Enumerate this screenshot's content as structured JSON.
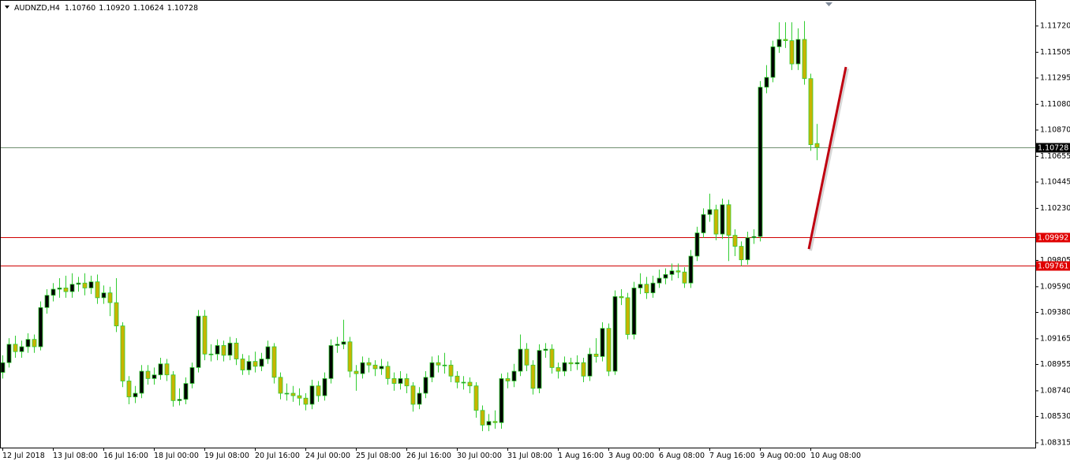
{
  "chart_data": {
    "type": "candlestick",
    "title": "AUDNZD,H4",
    "header_values": [
      "1.10760",
      "1.10920",
      "1.10624",
      "1.10728"
    ],
    "categories": [
      "12 Jul 2018",
      null,
      null,
      null,
      null,
      null,
      null,
      null,
      "13 Jul 08:00",
      null,
      null,
      null,
      null,
      null,
      null,
      null,
      "16 Jul 16:00",
      null,
      null,
      null,
      null,
      null,
      null,
      null,
      "18 Jul 00:00",
      null,
      null,
      null,
      null,
      null,
      null,
      null,
      "19 Jul 08:00",
      null,
      null,
      null,
      null,
      null,
      null,
      null,
      "20 Jul 16:00",
      null,
      null,
      null,
      null,
      null,
      null,
      null,
      "24 Jul 00:00",
      null,
      null,
      null,
      null,
      null,
      null,
      null,
      "25 Jul 08:00",
      null,
      null,
      null,
      null,
      null,
      null,
      null,
      "26 Jul 16:00",
      null,
      null,
      null,
      null,
      null,
      null,
      null,
      "30 Jul 00:00",
      null,
      null,
      null,
      null,
      null,
      null,
      null,
      "31 Jul 08:00",
      null,
      null,
      null,
      null,
      null,
      null,
      null,
      "1 Aug 16:00",
      null,
      null,
      null,
      null,
      null,
      null,
      null,
      "3 Aug 00:00",
      null,
      null,
      null,
      null,
      null,
      null,
      null,
      "6 Aug 08:00",
      null,
      null,
      null,
      null,
      null,
      null,
      null,
      "7 Aug 16:00",
      null,
      null,
      null,
      null,
      null,
      null,
      null,
      "9 Aug 00:00",
      null,
      null,
      null,
      null,
      null,
      null,
      null,
      "10 Aug 08:00",
      null
    ],
    "open": [
      1.0889,
      1.0897,
      1.0912,
      1.0906,
      1.091,
      1.0916,
      1.091,
      1.0942,
      1.0952,
      1.0957,
      1.0958,
      1.0955,
      1.0961,
      1.0962,
      1.0958,
      1.0963,
      1.095,
      1.0954,
      1.0946,
      1.0927,
      1.0882,
      1.0869,
      1.0872,
      1.089,
      1.0884,
      1.0887,
      1.0896,
      1.0887,
      1.0866,
      1.0867,
      1.088,
      1.0893,
      1.0935,
      1.0904,
      1.0904,
      1.0911,
      1.0903,
      1.0913,
      1.09,
      1.0891,
      1.0898,
      1.0894,
      1.09,
      1.091,
      1.0885,
      1.0872,
      1.0872,
      1.087,
      1.0868,
      1.0863,
      1.0878,
      1.087,
      1.0884,
      1.0911,
      1.0912,
      1.0914,
      1.089,
      1.0888,
      1.0897,
      1.0895,
      1.0892,
      1.0894,
      1.0884,
      1.088,
      1.0884,
      1.0878,
      1.0863,
      1.0872,
      1.0885,
      1.0897,
      1.0895,
      1.0895,
      1.0886,
      1.0881,
      1.0881,
      1.0878,
      1.0858,
      1.0846,
      1.0849,
      1.0848,
      1.0884,
      1.0882,
      1.089,
      1.0908,
      1.0895,
      1.0876,
      1.0907,
      1.0908,
      1.0893,
      1.089,
      1.0897,
      1.0896,
      1.0897,
      1.0886,
      1.0904,
      1.0902,
      1.0925,
      1.089,
      1.0951,
      1.095,
      1.092,
      1.0958,
      1.0961,
      1.0954,
      1.0962,
      1.0966,
      1.0969,
      1.0972,
      1.0971,
      1.0962,
      1.0984,
      1.1003,
      1.1018,
      1.1022,
      1.1002,
      1.1026,
      1.1001,
      1.0992,
      1.0981,
      1.0999,
      1.1,
      1.1122,
      1.113,
      1.1155,
      1.1161,
      1.116,
      1.1141,
      1.1161,
      1.1129,
      1.1076
    ],
    "high": [
      1.0903,
      1.0917,
      1.0919,
      1.0915,
      1.0921,
      1.092,
      1.0947,
      1.0957,
      1.0962,
      1.0966,
      1.0968,
      1.097,
      1.0967,
      1.097,
      1.0968,
      1.0969,
      1.096,
      1.0959,
      1.0966,
      1.093,
      1.0886,
      1.0878,
      1.0895,
      1.0895,
      1.0893,
      1.0901,
      1.09,
      1.089,
      1.0876,
      1.0885,
      1.0897,
      1.094,
      1.094,
      1.0912,
      1.0916,
      1.0915,
      1.0918,
      1.0917,
      1.0904,
      1.0903,
      1.0906,
      1.0905,
      1.0915,
      1.0913,
      1.0889,
      1.088,
      1.0878,
      1.0876,
      1.0872,
      1.0883,
      1.0882,
      1.0889,
      1.0916,
      1.0918,
      1.0932,
      1.0918,
      1.0895,
      1.0902,
      1.0901,
      1.0899,
      1.09,
      1.0898,
      1.0889,
      1.089,
      1.0888,
      1.0881,
      1.0877,
      1.089,
      1.0902,
      1.0903,
      1.0905,
      1.0899,
      1.089,
      1.0886,
      1.0885,
      1.0881,
      1.0862,
      1.0855,
      1.0858,
      1.0888,
      1.0889,
      1.0896,
      1.092,
      1.0913,
      1.0899,
      1.0912,
      1.0913,
      1.0912,
      1.0897,
      1.0902,
      1.0901,
      1.0903,
      1.0901,
      1.0909,
      1.0917,
      1.093,
      1.0929,
      1.0956,
      1.0957,
      1.0954,
      1.0963,
      1.097,
      1.0967,
      1.0968,
      1.0973,
      1.0974,
      1.0978,
      1.0978,
      1.0975,
      1.0989,
      1.1008,
      1.1023,
      1.1035,
      1.1026,
      1.1031,
      1.103,
      1.1006,
      1.0996,
      1.1004,
      1.1006,
      1.1127,
      1.114,
      1.116,
      1.1175,
      1.1175,
      1.1175,
      1.117,
      1.1176,
      1.1133,
      1.1092
    ],
    "low": [
      1.0884,
      1.0893,
      1.0901,
      1.0901,
      1.0905,
      1.0905,
      1.0907,
      1.0937,
      1.0947,
      1.095,
      1.095,
      1.095,
      1.0955,
      1.0952,
      1.0953,
      1.0945,
      1.0945,
      1.0935,
      1.0922,
      1.0877,
      1.0863,
      1.0864,
      1.0868,
      1.0879,
      1.0879,
      1.0883,
      1.0882,
      1.0861,
      1.0862,
      1.0863,
      1.0876,
      1.0889,
      1.0899,
      1.0898,
      1.0899,
      1.0898,
      1.0899,
      1.0895,
      1.0887,
      1.0887,
      1.0889,
      1.089,
      1.0896,
      1.088,
      1.0867,
      1.0866,
      1.0865,
      1.0862,
      1.0858,
      1.0859,
      1.0865,
      1.0866,
      1.088,
      1.0905,
      1.0908,
      1.0885,
      1.0874,
      1.0884,
      1.0889,
      1.0886,
      1.0887,
      1.0879,
      1.0874,
      1.0875,
      1.0872,
      1.0857,
      1.0859,
      1.0868,
      1.0881,
      1.0889,
      1.0888,
      1.0881,
      1.0876,
      1.0875,
      1.0872,
      1.0852,
      1.0841,
      1.0841,
      1.0843,
      1.0843,
      1.0876,
      1.0877,
      1.0886,
      1.089,
      1.0871,
      1.0872,
      1.0901,
      1.0888,
      1.0884,
      1.0886,
      1.089,
      1.0891,
      1.0881,
      1.0882,
      1.0897,
      1.0898,
      1.0886,
      1.0887,
      1.0944,
      1.0916,
      1.0916,
      1.0953,
      1.0949,
      1.095,
      1.0958,
      1.0961,
      1.0964,
      1.0966,
      1.0958,
      1.0958,
      1.098,
      1.0999,
      1.1012,
      1.0997,
      1.0998,
      1.098,
      1.0984,
      1.0976,
      1.0977,
      1.0994,
      1.0996,
      1.1117,
      1.1126,
      1.115,
      1.1154,
      1.1136,
      1.1136,
      1.1124,
      1.107,
      1.10624
    ],
    "close": [
      1.0897,
      1.0912,
      1.0906,
      1.091,
      1.0916,
      1.091,
      1.0942,
      1.0952,
      1.0957,
      1.0958,
      1.0955,
      1.0961,
      1.0962,
      1.0958,
      1.0963,
      1.095,
      1.0954,
      1.0946,
      1.0927,
      1.0882,
      1.0869,
      1.0872,
      1.089,
      1.0884,
      1.0887,
      1.0896,
      1.0887,
      1.0866,
      1.0867,
      1.088,
      1.0893,
      1.0935,
      1.0904,
      1.0904,
      1.0911,
      1.0903,
      1.0913,
      1.09,
      1.0891,
      1.0898,
      1.0894,
      1.09,
      1.091,
      1.0885,
      1.0872,
      1.0872,
      1.087,
      1.0868,
      1.0863,
      1.0878,
      1.087,
      1.0884,
      1.0911,
      1.0912,
      1.0914,
      1.089,
      1.0888,
      1.0897,
      1.0895,
      1.0892,
      1.0894,
      1.0884,
      1.088,
      1.0884,
      1.0878,
      1.0863,
      1.0872,
      1.0885,
      1.0897,
      1.0895,
      1.0895,
      1.0886,
      1.0881,
      1.0881,
      1.0878,
      1.0858,
      1.0846,
      1.0849,
      1.0848,
      1.0884,
      1.0882,
      1.089,
      1.0908,
      1.0895,
      1.0876,
      1.0907,
      1.0908,
      1.0893,
      1.089,
      1.0897,
      1.0896,
      1.0897,
      1.0886,
      1.0904,
      1.0902,
      1.0925,
      1.089,
      1.0951,
      1.095,
      1.092,
      1.0958,
      1.0961,
      1.0954,
      1.0962,
      1.0966,
      1.0969,
      1.0972,
      1.0971,
      1.0962,
      1.0984,
      1.1003,
      1.1018,
      1.1022,
      1.1002,
      1.1026,
      1.1001,
      1.0992,
      1.0981,
      1.0999,
      1.1,
      1.1122,
      1.113,
      1.1155,
      1.1161,
      1.116,
      1.1141,
      1.1161,
      1.1129,
      1.1075,
      1.10728
    ],
    "bull_color": "#000000",
    "bear_color": "#c8b400",
    "wick_color": "#32cd32",
    "ylim": [
      1.08276,
      1.11932
    ],
    "yticks": [
      {
        "value": 1.1172,
        "label": "1.11720"
      },
      {
        "value": 1.11505,
        "label": "1.11505"
      },
      {
        "value": 1.11295,
        "label": "1.11295"
      },
      {
        "value": 1.1108,
        "label": "1.11080"
      },
      {
        "value": 1.1087,
        "label": "1.10870"
      },
      {
        "value": 1.10655,
        "label": "1.10655"
      },
      {
        "value": 1.10445,
        "label": "1.10445"
      },
      {
        "value": 1.1023,
        "label": "1.10230"
      },
      {
        "value": 1.09805,
        "label": "1.09805"
      },
      {
        "value": 1.0959,
        "label": "1.09590"
      },
      {
        "value": 1.0938,
        "label": "1.09380"
      },
      {
        "value": 1.09165,
        "label": "1.09165"
      },
      {
        "value": 1.08955,
        "label": "1.08955"
      },
      {
        "value": 1.0874,
        "label": "1.08740"
      },
      {
        "value": 1.0853,
        "label": "1.08530"
      },
      {
        "value": 1.08315,
        "label": "1.08315"
      }
    ],
    "levels": [
      {
        "value": 1.10728,
        "label": "1.10728",
        "color": "#6f8f6f",
        "label_color": "#000000"
      },
      {
        "value": 1.09992,
        "label": "1.09992",
        "color": "#d00000",
        "label_color": "#e00000"
      },
      {
        "value": 1.09761,
        "label": "1.09761",
        "color": "#d00000",
        "label_color": "#e00000"
      }
    ]
  }
}
